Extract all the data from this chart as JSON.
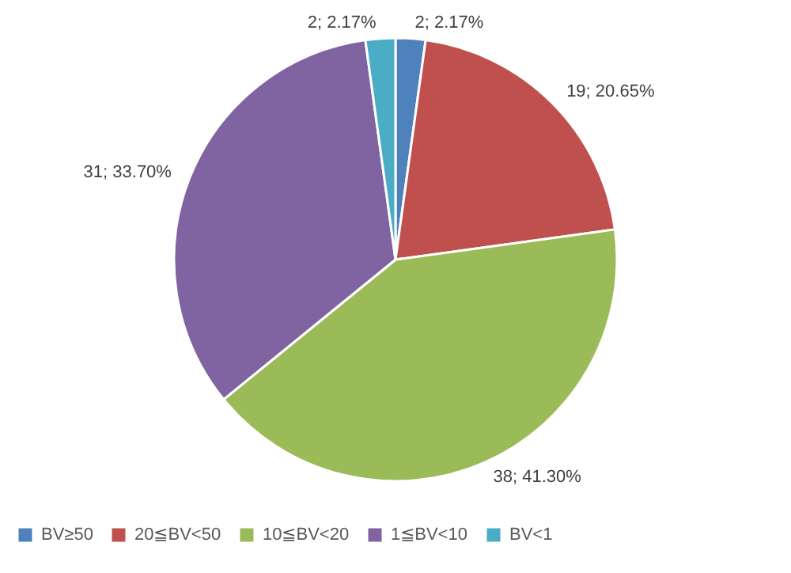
{
  "chart_data": {
    "type": "pie",
    "categories": [
      "BV≥50",
      "20≦BV<50",
      "10≦BV<20",
      "1≦BV<10",
      "BV<1"
    ],
    "values": [
      2,
      19,
      38,
      31,
      2
    ],
    "colors": [
      "#4f81bd",
      "#c0504d",
      "#9bbb59",
      "#8064a2",
      "#4bacc6"
    ],
    "value_labels": [
      "2; 2.17%",
      "19; 20.65%",
      "38; 41.30%",
      "31; 33.70%",
      "2; 2.17%"
    ],
    "legend": "bottom"
  }
}
